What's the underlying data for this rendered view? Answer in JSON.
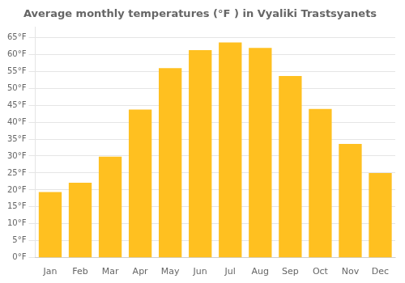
{
  "chart_data": {
    "type": "bar",
    "title": "Average monthly temperatures (°F ) in Vyaliki Trastsyanets",
    "categories": [
      "Jan",
      "Feb",
      "Mar",
      "Apr",
      "May",
      "Jun",
      "Jul",
      "Aug",
      "Sep",
      "Oct",
      "Nov",
      "Dec"
    ],
    "values": [
      19.4,
      22.1,
      29.8,
      43.7,
      55.9,
      61.2,
      63.5,
      61.9,
      53.6,
      43.9,
      33.6,
      25.0
    ],
    "color": "#FFC020",
    "ylim": [
      0,
      68
    ],
    "yticks": [
      {
        "value": 0,
        "label": "0°F"
      },
      {
        "value": 5,
        "label": "5°F"
      },
      {
        "value": 10,
        "label": "10°F"
      },
      {
        "value": 15,
        "label": "15°F"
      },
      {
        "value": 20,
        "label": "20°F"
      },
      {
        "value": 25,
        "label": "25°F"
      },
      {
        "value": 30,
        "label": "30°F"
      },
      {
        "value": 35,
        "label": "35°F"
      },
      {
        "value": 40,
        "label": "40°F"
      },
      {
        "value": 45,
        "label": "45°F"
      },
      {
        "value": 50,
        "label": "50°F"
      },
      {
        "value": 55,
        "label": "55°F"
      },
      {
        "value": 60,
        "label": "60°F"
      },
      {
        "value": 65,
        "label": "65°F"
      }
    ],
    "grid": true
  }
}
